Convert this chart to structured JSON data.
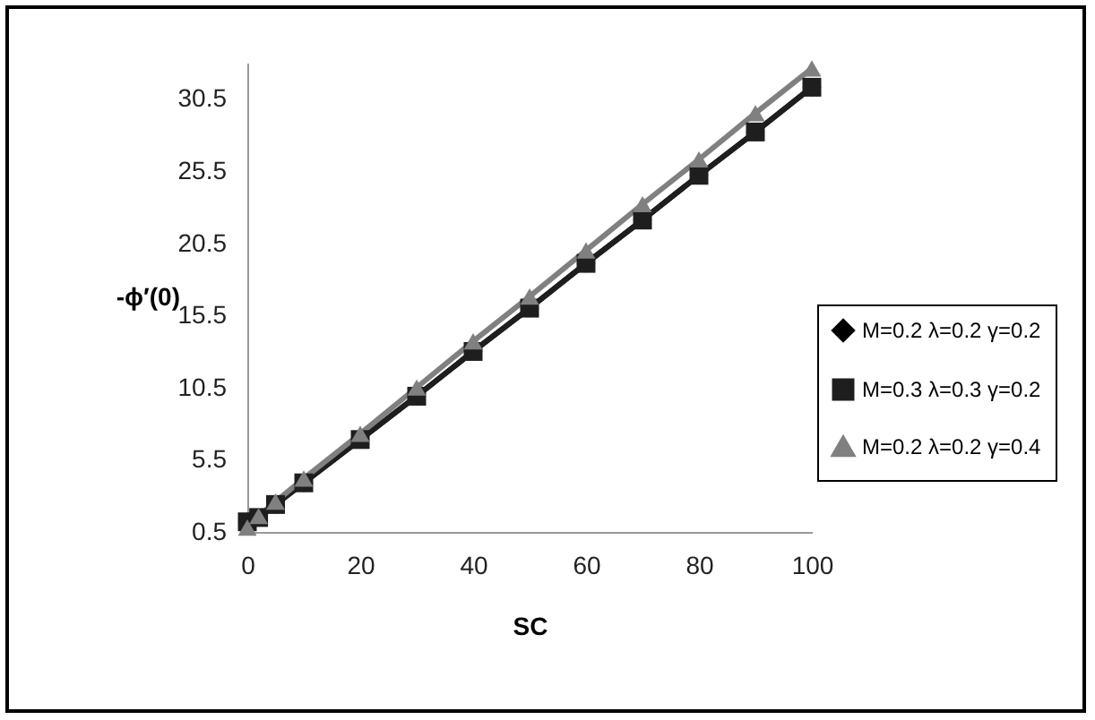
{
  "chart_data": {
    "type": "line",
    "xlabel": "SC",
    "ylabel": "-ϕ′(0)",
    "x": [
      0,
      2,
      5,
      10,
      20,
      30,
      40,
      50,
      60,
      70,
      80,
      90,
      100
    ],
    "series": [
      {
        "name": "M=0.2 λ=0.2 γ=0.2",
        "color": "#000000",
        "marker": "diamond",
        "values": [
          1.2,
          1.5,
          2.4,
          3.9,
          6.9,
          9.9,
          13.0,
          16.0,
          19.1,
          22.1,
          25.2,
          28.2,
          31.3
        ]
      },
      {
        "name": "M=0.3 λ=0.3 γ=0.2",
        "color": "#1e1e1e",
        "marker": "square",
        "values": [
          1.2,
          1.5,
          2.4,
          3.9,
          6.9,
          9.9,
          13.0,
          16.0,
          19.1,
          22.1,
          25.2,
          28.2,
          31.3
        ]
      },
      {
        "name": "M=0.2 λ=0.2 γ=0.4",
        "color": "#808080",
        "marker": "triangle",
        "values": [
          0.8,
          1.6,
          2.6,
          4.2,
          7.3,
          10.5,
          13.7,
          16.8,
          20.0,
          23.2,
          26.3,
          29.5,
          32.6
        ]
      }
    ],
    "xlim": [
      0,
      100
    ],
    "xticks": [
      0,
      20,
      40,
      60,
      80,
      100
    ],
    "ylim": [
      0.5,
      33
    ],
    "yticks": [
      0.5,
      5.5,
      10.5,
      15.5,
      20.5,
      25.5,
      30.5
    ],
    "grid": false,
    "legend": "right"
  }
}
